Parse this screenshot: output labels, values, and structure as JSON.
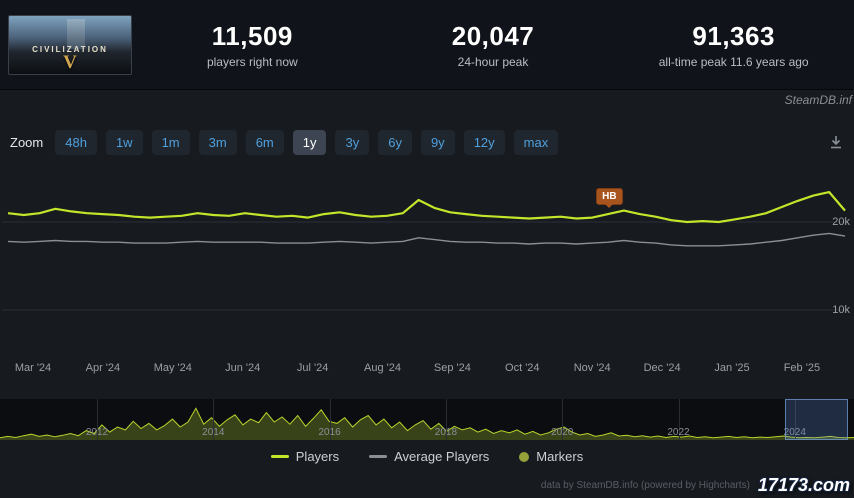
{
  "header": {
    "game_title": "CIVILIZATION",
    "game_numeral": "V",
    "stats": [
      {
        "value": "11,509",
        "label": "players right now"
      },
      {
        "value": "20,047",
        "label": "24-hour peak"
      },
      {
        "value": "91,363",
        "label": "all-time peak 11.6 years ago"
      }
    ]
  },
  "watermark_top": "SteamDB.inf",
  "toolbar": {
    "zoom_label": "Zoom",
    "ranges": [
      "48h",
      "1w",
      "1m",
      "3m",
      "6m",
      "1y",
      "3y",
      "6y",
      "9y",
      "12y",
      "max"
    ],
    "selected": "1y"
  },
  "chart_data": {
    "type": "line",
    "title": "Civilization V concurrent players (1 year)",
    "x_labels": [
      "Mar '24",
      "Apr '24",
      "May '24",
      "Jun '24",
      "Jul '24",
      "Aug '24",
      "Sep '24",
      "Oct '24",
      "Nov '24",
      "Dec '24",
      "Jan '25",
      "Feb '25"
    ],
    "y_axis_ticks": [
      {
        "label": "20k",
        "value": 20000
      },
      {
        "label": "10k",
        "value": 10000
      }
    ],
    "values_unit": "thousands of players",
    "series": [
      {
        "name": "Players",
        "color": "#c5e52a",
        "values": [
          21.0,
          20.8,
          21.0,
          21.5,
          21.2,
          21.0,
          20.9,
          20.8,
          20.6,
          20.5,
          20.6,
          20.7,
          21.0,
          20.8,
          20.7,
          21.0,
          20.8,
          20.6,
          20.7,
          20.5,
          20.9,
          21.1,
          20.8,
          20.6,
          20.7,
          21.0,
          22.5,
          21.6,
          21.1,
          20.9,
          20.7,
          20.6,
          20.5,
          20.4,
          20.5,
          20.6,
          20.4,
          20.5,
          20.9,
          21.3,
          20.9,
          20.6,
          20.2,
          20.0,
          20.1,
          20.0,
          20.3,
          20.6,
          21.0,
          21.7,
          22.4,
          23.0,
          23.4,
          21.3
        ]
      },
      {
        "name": "Average Players",
        "color": "#8b8f94",
        "values": [
          17.8,
          17.7,
          17.8,
          17.9,
          17.8,
          17.8,
          17.7,
          17.7,
          17.6,
          17.6,
          17.6,
          17.7,
          17.8,
          17.7,
          17.7,
          17.7,
          17.7,
          17.6,
          17.6,
          17.6,
          17.7,
          17.8,
          17.7,
          17.6,
          17.7,
          17.8,
          18.2,
          18.0,
          17.8,
          17.7,
          17.7,
          17.6,
          17.6,
          17.5,
          17.6,
          17.6,
          17.5,
          17.6,
          17.7,
          17.9,
          17.7,
          17.6,
          17.4,
          17.3,
          17.3,
          17.3,
          17.4,
          17.5,
          17.7,
          17.9,
          18.2,
          18.5,
          18.7,
          18.4
        ]
      }
    ],
    "marker": {
      "label": "HB",
      "index": 38,
      "color": "#a8541f"
    },
    "navigator": {
      "year_labels": [
        "2012",
        "2014",
        "2016",
        "2018",
        "2020",
        "2022",
        "2024"
      ],
      "values": [
        6,
        10,
        7,
        12,
        16,
        10,
        14,
        9,
        13,
        18,
        12,
        26,
        18,
        42,
        22,
        36,
        28,
        52,
        32,
        46,
        28,
        40,
        58,
        36,
        50,
        88,
        44,
        62,
        38,
        56,
        70,
        42,
        58,
        48,
        76,
        50,
        64,
        44,
        68,
        38,
        60,
        84,
        52,
        46,
        62,
        36,
        56,
        68,
        42,
        58,
        34,
        50,
        26,
        42,
        54,
        30,
        46,
        24,
        38,
        28,
        34,
        22,
        30,
        18,
        26,
        20,
        28,
        16,
        24,
        14,
        20,
        30,
        36,
        22,
        14,
        18,
        10,
        14,
        20,
        11,
        13,
        9,
        12,
        8,
        11,
        7,
        10,
        8,
        11,
        7,
        9,
        6,
        8,
        10,
        7,
        9,
        6,
        8,
        7,
        9,
        11,
        8,
        6,
        7,
        6,
        8,
        10,
        7,
        6,
        7
      ],
      "selection_start_frac": 0.919,
      "selection_end_frac": 0.993
    }
  },
  "legend": [
    {
      "label": "Players",
      "type": "line",
      "color": "#c5e52a"
    },
    {
      "label": "Average Players",
      "type": "line",
      "color": "#8b8f94"
    },
    {
      "label": "Markers",
      "type": "dot",
      "color": "#97a13a"
    }
  ],
  "footer": {
    "attribution": "data by SteamDB.info (powered by Highcharts)",
    "watermark": "17173.com"
  }
}
